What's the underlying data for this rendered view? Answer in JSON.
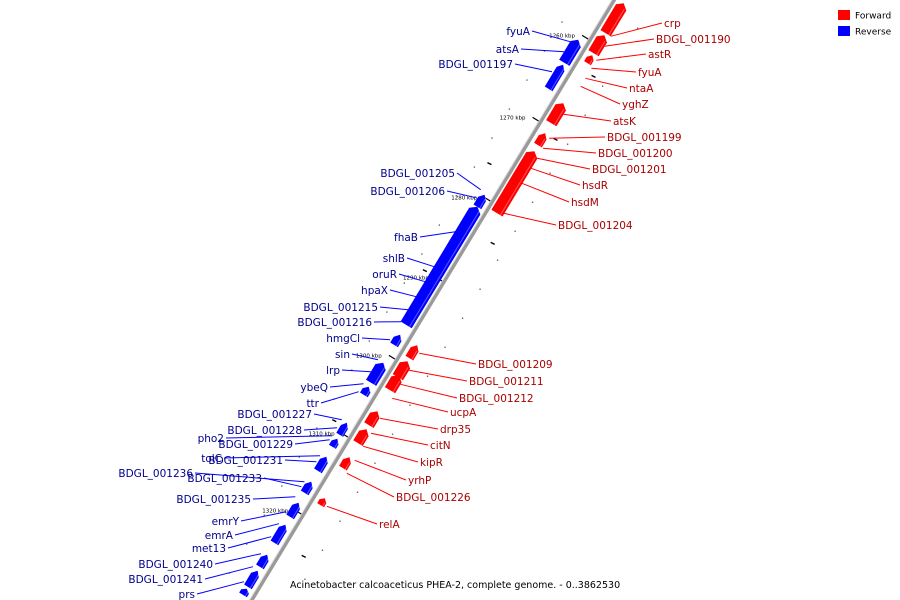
{
  "caption": "Acinetobacter calcoaceticus PHEA-2, complete genome. - 0..3862530",
  "legend": [
    {
      "label": "Forward",
      "color": "#ff0000"
    },
    {
      "label": "Reverse",
      "color": "#0000ff"
    }
  ],
  "colors": {
    "forward": "#ff0000",
    "reverse": "#0000ff",
    "backbone": "#9a9a9a"
  },
  "ticks": [
    "1260 kbp",
    "1270 kbp",
    "1280 kbp",
    "1290 kbp",
    "1300 kbp",
    "1310 kbp",
    "1320 kbp"
  ],
  "forward_labels": [
    "crp",
    "BDGL_001190",
    "astR",
    "fyuA",
    "ntaA",
    "yghZ",
    "atsK",
    "BDGL_001199",
    "BDGL_001200",
    "BDGL_001201",
    "hsdR",
    "hsdM",
    "BDGL_001204",
    "BDGL_001209",
    "BDGL_001211",
    "BDGL_001212",
    "ucpA",
    "drp35",
    "citN",
    "kipR",
    "yrhP",
    "BDGL_001226",
    "relA"
  ],
  "reverse_labels": [
    "fyuA",
    "atsA",
    "BDGL_001197",
    "BDGL_001205",
    "BDGL_001206",
    "fhaB",
    "shlB",
    "oruR",
    "hpaX",
    "BDGL_001215",
    "BDGL_001216",
    "hmgCl",
    "sin",
    "lrp",
    "ybeQ",
    "ttr",
    "BDGL_001227",
    "BDGL_001228",
    "pho2",
    "BDGL_001229",
    "tolC",
    "BDGL_001231",
    "BDGL_001236",
    "BDGL_001233",
    "BDGL_001235",
    "emrY",
    "emrA",
    "met13",
    "BDGL_001240",
    "BDGL_001241",
    "prs"
  ]
}
